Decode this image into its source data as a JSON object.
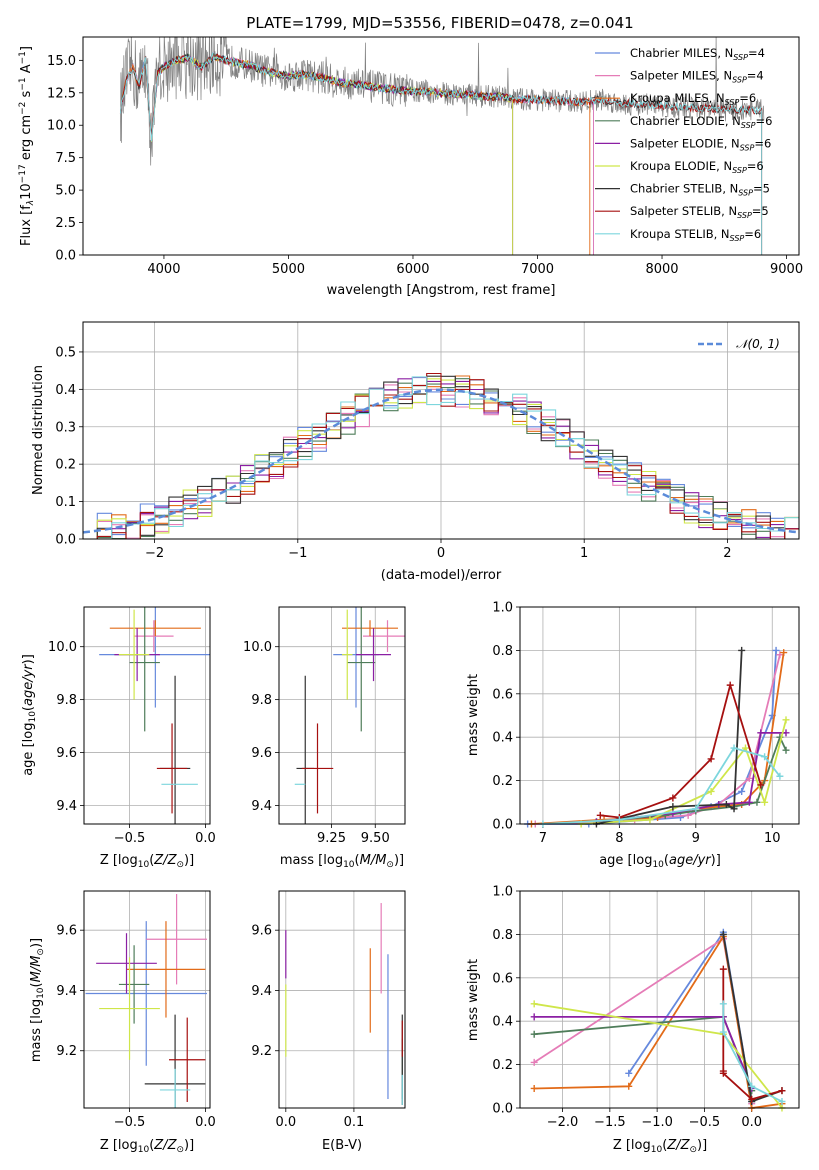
{
  "chart_data": [
    {
      "id": "spectrum",
      "type": "line",
      "title": "PLATE=1799, MJD=53556, FIBERID=0478, z=0.041",
      "xlabel": "wavelength [Angstrom, rest frame]",
      "ylabel_parts": [
        "Flux [f",
        "λ",
        "10",
        "−17",
        " erg cm",
        "−2",
        " s",
        "−1",
        " A",
        "−1",
        "]"
      ],
      "xlim": [
        3350,
        9100
      ],
      "ylim": [
        0,
        16.8
      ],
      "xticks": [
        4000,
        5000,
        6000,
        7000,
        8000,
        9000
      ],
      "yticks": [
        0.0,
        2.5,
        5.0,
        7.5,
        10.0,
        12.5,
        15.0
      ],
      "data_color": "#808080",
      "data": {
        "x": [
          3650,
          3700,
          3750,
          3800,
          3850,
          3900,
          3950,
          4000,
          4100,
          4200,
          4300,
          4400,
          4500,
          4600,
          4700,
          4800,
          4900,
          5000,
          5100,
          5200,
          5300,
          5400,
          5500,
          5600,
          5700,
          5800,
          5900,
          6000,
          6100,
          6200,
          6300,
          6400,
          6500,
          6600,
          6700,
          6800,
          6900,
          7000,
          7100,
          7200,
          7300,
          7400,
          7500,
          7600,
          7700,
          7800,
          7900,
          8000,
          8100,
          8200,
          8300,
          8400,
          8500,
          8600,
          8700,
          8800
        ],
        "y": [
          11.2,
          13.5,
          14.5,
          13.0,
          15.0,
          9.0,
          14.0,
          14.5,
          15.0,
          15.2,
          14.5,
          15.3,
          15.0,
          14.8,
          14.6,
          14.2,
          14.0,
          13.8,
          13.9,
          13.8,
          13.6,
          13.3,
          13.2,
          13.1,
          12.9,
          12.8,
          12.7,
          12.6,
          12.6,
          12.5,
          12.4,
          12.4,
          12.3,
          12.2,
          12.2,
          12.0,
          12.0,
          12.0,
          11.9,
          11.9,
          11.8,
          11.8,
          12.0,
          11.8,
          11.7,
          11.6,
          11.6,
          11.5,
          11.4,
          11.4,
          11.3,
          11.3,
          11.2,
          11.2,
          11.2,
          11.1
        ]
      },
      "models": [
        {
          "name": "Chabrier MILES, N",
          "sub": "SSP",
          "suffix": "=4",
          "color": "#6689dd",
          "range": [
            3650,
            7450
          ]
        },
        {
          "name": "Salpeter MILES, N",
          "sub": "SSP",
          "suffix": "=4",
          "color": "#e57cb7",
          "range": [
            3650,
            7450
          ]
        },
        {
          "name": "Kroupa MILES, N",
          "sub": "SSP",
          "suffix": "=6",
          "color": "#e26b19",
          "range": [
            3650,
            7420
          ]
        },
        {
          "name": "Chabrier ELODIE, N",
          "sub": "SSP",
          "suffix": "=6",
          "color": "#4f7d5a",
          "range": [
            3900,
            6800
          ]
        },
        {
          "name": "Salpeter ELODIE, N",
          "sub": "SSP",
          "suffix": "=6",
          "color": "#8b1fa3",
          "range": [
            3900,
            6800
          ]
        },
        {
          "name": "Kroupa ELODIE, N",
          "sub": "SSP",
          "suffix": "=6",
          "color": "#cfe64a",
          "range": [
            3900,
            6800
          ]
        },
        {
          "name": "Chabrier STELIB, N",
          "sub": "SSP",
          "suffix": "=5",
          "color": "#333333",
          "range": [
            3650,
            8800
          ]
        },
        {
          "name": "Salpeter STELIB, N",
          "sub": "SSP",
          "suffix": "=5",
          "color": "#a61010",
          "range": [
            3650,
            8800
          ]
        },
        {
          "name": "Kroupa STELIB, N",
          "sub": "SSP",
          "suffix": "=6",
          "color": "#7dd6dd",
          "range": [
            3650,
            8800
          ]
        }
      ],
      "legend_position": "upper-right"
    },
    {
      "id": "residuals",
      "type": "line",
      "xlabel": "(data-model)/error",
      "ylabel": "Normed distribution",
      "xlim": [
        -2.5,
        2.5
      ],
      "ylim": [
        0,
        0.58
      ],
      "xticks": [
        -2,
        -1,
        0,
        1,
        2
      ],
      "yticks": [
        0.0,
        0.1,
        0.2,
        0.3,
        0.4,
        0.5
      ],
      "grid": true,
      "bin_width": 0.1,
      "reference": {
        "label": "𝒩(0, 1)",
        "color": "#5b8bd9",
        "style": "dashed"
      },
      "legend_position": "upper-right"
    },
    {
      "id": "age-vs-Z",
      "type": "scatter",
      "xlabel_parts": [
        "Z [log",
        "10",
        "(",
        "Z/Z",
        "⊙",
        ")]"
      ],
      "ylabel_parts": [
        "age  [log",
        "10",
        "(",
        "age/yr",
        ")]"
      ],
      "xlim": [
        -0.8,
        0.03
      ],
      "ylim": [
        9.33,
        10.15
      ],
      "xticks": [
        -0.5,
        0.0
      ],
      "ytick_labels": [
        "9.4",
        "9.6",
        "9.8",
        "10.0"
      ],
      "yticks": [
        9.4,
        9.6,
        9.8,
        10.0
      ],
      "grid": true,
      "points": [
        {
          "color": "#6689dd",
          "x": -0.33,
          "xerr": 0.37,
          "y": 9.97,
          "yerr": 0.2
        },
        {
          "color": "#e57cb7",
          "x": -0.34,
          "xerr": 0.13,
          "y": 10.04,
          "yerr": 0.06
        },
        {
          "color": "#e26b19",
          "x": -0.33,
          "xerr": 0.3,
          "y": 10.07,
          "yerr": 0.03
        },
        {
          "color": "#4f7d5a",
          "x": -0.4,
          "xerr": 0.1,
          "y": 9.94,
          "yerr": 0.26
        },
        {
          "color": "#8b1fa3",
          "x": -0.45,
          "xerr": 0.15,
          "y": 9.97,
          "yerr": 0.1
        },
        {
          "color": "#cfe64a",
          "x": -0.47,
          "xerr": 0.1,
          "y": 9.97,
          "yerr": 0.17
        },
        {
          "color": "#333333",
          "x": -0.2,
          "xerr": 0.1,
          "y": 9.54,
          "yerr": 0.35
        },
        {
          "color": "#a61010",
          "x": -0.22,
          "xerr": 0.1,
          "y": 9.54,
          "yerr": 0.17
        },
        {
          "color": "#7dd6dd",
          "x": -0.17,
          "xerr": 0.12,
          "y": 9.48,
          "yerr": 0.0
        }
      ]
    },
    {
      "id": "age-vs-mass",
      "type": "scatter",
      "xlabel_parts": [
        "mass [log",
        "10",
        "(",
        "M/M",
        "⊙",
        ")]"
      ],
      "xlim": [
        8.95,
        9.67
      ],
      "ylim": [
        9.33,
        10.15
      ],
      "xticks": [
        9.25,
        9.5
      ],
      "xtick_labels": [
        "9.25",
        "9.50"
      ],
      "ytick_labels": [
        "9.4",
        "9.6",
        "9.8",
        "10.0"
      ],
      "yticks": [
        9.4,
        9.6,
        9.8,
        10.0
      ],
      "grid": true,
      "points": [
        {
          "color": "#6689dd",
          "x": 9.39,
          "xerr": 0.13,
          "y": 9.97,
          "yerr": 0.2
        },
        {
          "color": "#e57cb7",
          "x": 9.57,
          "xerr": 0.14,
          "y": 10.04,
          "yerr": 0.06
        },
        {
          "color": "#e26b19",
          "x": 9.47,
          "xerr": 0.16,
          "y": 10.07,
          "yerr": 0.03
        },
        {
          "color": "#4f7d5a",
          "x": 9.42,
          "xerr": 0.08,
          "y": 9.94,
          "yerr": 0.26
        },
        {
          "color": "#8b1fa3",
          "x": 9.49,
          "xerr": 0.1,
          "y": 9.97,
          "yerr": 0.1
        },
        {
          "color": "#cfe64a",
          "x": 9.34,
          "xerr": 0.03,
          "y": 9.97,
          "yerr": 0.17
        },
        {
          "color": "#333333",
          "x": 9.1,
          "xerr": 0.05,
          "y": 9.54,
          "yerr": 0.35
        },
        {
          "color": "#a61010",
          "x": 9.17,
          "xerr": 0.09,
          "y": 9.54,
          "yerr": 0.17
        },
        {
          "color": "#7dd6dd",
          "x": 9.07,
          "xerr": 0.03,
          "y": 9.48,
          "yerr": 0.0
        }
      ]
    },
    {
      "id": "massweight-vs-age",
      "type": "line",
      "xlabel_parts": [
        "age  [log",
        "10",
        "(",
        "age/yr",
        ")]"
      ],
      "ylabel": "mass weight",
      "xlim": [
        6.7,
        10.35
      ],
      "ylim": [
        0,
        1.0
      ],
      "xticks": [
        7,
        8,
        9,
        10
      ],
      "yticks": [
        0.0,
        0.2,
        0.4,
        0.6,
        0.8,
        1.0
      ],
      "grid": true,
      "series": [
        {
          "color": "#6689dd",
          "x": [
            6.8,
            7.6,
            8.0,
            8.8,
            9.2,
            9.6,
            10.0,
            10.05
          ],
          "y": [
            0.0,
            0.0,
            0.01,
            0.03,
            0.08,
            0.15,
            0.5,
            0.8
          ]
        },
        {
          "color": "#e57cb7",
          "x": [
            6.9,
            7.7,
            8.2,
            8.9,
            9.3,
            9.7,
            10.1
          ],
          "y": [
            0.0,
            0.01,
            0.02,
            0.04,
            0.09,
            0.21,
            0.78
          ]
        },
        {
          "color": "#e26b19",
          "x": [
            6.85,
            7.8,
            8.5,
            9.0,
            9.6,
            9.9,
            10.15
          ],
          "y": [
            0.0,
            0.02,
            0.03,
            0.07,
            0.09,
            0.2,
            0.79
          ]
        },
        {
          "color": "#4f7d5a",
          "x": [
            7.7,
            8.6,
            9.0,
            9.5,
            9.8,
            10.1,
            10.18
          ],
          "y": [
            0.01,
            0.04,
            0.06,
            0.08,
            0.1,
            0.4,
            0.34
          ]
        },
        {
          "color": "#8b1fa3",
          "x": [
            7.7,
            8.7,
            9.3,
            9.7,
            9.85,
            10.18
          ],
          "y": [
            0.01,
            0.05,
            0.09,
            0.1,
            0.42,
            0.42
          ]
        },
        {
          "color": "#cfe64a",
          "x": [
            7.5,
            8.4,
            9.2,
            9.65,
            9.9,
            10.18
          ],
          "y": [
            0.0,
            0.02,
            0.15,
            0.35,
            0.1,
            0.48
          ]
        },
        {
          "color": "#333333",
          "x": [
            7.7,
            8.7,
            9.4,
            9.5,
            9.6
          ],
          "y": [
            0.0,
            0.08,
            0.09,
            0.07,
            0.8
          ]
        },
        {
          "color": "#a61010",
          "x": [
            7.75,
            8.0,
            8.7,
            9.2,
            9.45,
            9.85
          ],
          "y": [
            0.04,
            0.03,
            0.12,
            0.3,
            0.64,
            0.18
          ]
        },
        {
          "color": "#7dd6dd",
          "x": [
            7.0,
            8.0,
            9.0,
            9.5,
            9.9,
            10.1
          ],
          "y": [
            0.0,
            0.02,
            0.07,
            0.35,
            0.31,
            0.22
          ]
        }
      ]
    },
    {
      "id": "mass-vs-Z",
      "type": "scatter",
      "xlabel_parts": [
        "Z [log",
        "10",
        "(",
        "Z/Z",
        "⊙",
        ")]"
      ],
      "ylabel_parts": [
        "mass [log",
        "10",
        "(",
        "M/M",
        "⊙",
        ")]"
      ],
      "xlim": [
        -0.8,
        0.03
      ],
      "ylim": [
        9.01,
        9.73
      ],
      "xticks": [
        -0.5,
        0.0
      ],
      "ytick_labels": [
        "9.2",
        "9.4",
        "9.6"
      ],
      "yticks": [
        9.2,
        9.4,
        9.6
      ],
      "grid": true,
      "points": [
        {
          "color": "#6689dd",
          "x": -0.39,
          "xerr": 0.4,
          "y": 9.39,
          "yerr": 0.24
        },
        {
          "color": "#e57cb7",
          "x": -0.19,
          "xerr": 0.2,
          "y": 9.57,
          "yerr": 0.15
        },
        {
          "color": "#e26b19",
          "x": -0.26,
          "xerr": 0.26,
          "y": 9.47,
          "yerr": 0.16
        },
        {
          "color": "#4f7d5a",
          "x": -0.47,
          "xerr": 0.1,
          "y": 9.42,
          "yerr": 0.13
        },
        {
          "color": "#8b1fa3",
          "x": -0.52,
          "xerr": 0.2,
          "y": 9.49,
          "yerr": 0.1
        },
        {
          "color": "#cfe64a",
          "x": -0.5,
          "xerr": 0.2,
          "y": 9.34,
          "yerr": 0.17
        },
        {
          "color": "#333333",
          "x": -0.2,
          "xerr": 0.2,
          "y": 9.09,
          "yerr": 0.23
        },
        {
          "color": "#a61010",
          "x": -0.12,
          "xerr": 0.12,
          "y": 9.17,
          "yerr": 0.14
        },
        {
          "color": "#7dd6dd",
          "x": -0.2,
          "xerr": 0.1,
          "y": 9.07,
          "yerr": 0.07
        }
      ]
    },
    {
      "id": "mass-vs-EBV",
      "type": "scatter",
      "xlabel": "E(B-V)",
      "xlim": [
        -0.01,
        0.175
      ],
      "ylim": [
        9.01,
        9.73
      ],
      "xticks": [
        0.0,
        0.1
      ],
      "xtick_labels": [
        "0.0",
        "0.1"
      ],
      "ytick_labels": [
        "9.2",
        "9.4",
        "9.6"
      ],
      "yticks": [
        9.2,
        9.4,
        9.6
      ],
      "grid": true,
      "points": [
        {
          "color": "#6689dd",
          "x": 0.15,
          "xerr": 0.0,
          "y": 9.28,
          "yerr": 0.24
        },
        {
          "color": "#e57cb7",
          "x": 0.14,
          "xerr": 0.0,
          "y": 9.54,
          "yerr": 0.15
        },
        {
          "color": "#e26b19",
          "x": 0.124,
          "xerr": 0.0,
          "y": 9.4,
          "yerr": 0.14
        },
        {
          "color": "#4f7d5a",
          "x": 0.171,
          "xerr": 0.0,
          "y": 9.14,
          "yerr": 0.1
        },
        {
          "color": "#8b1fa3",
          "x": 0.0,
          "xerr": 0.0,
          "y": 9.52,
          "yerr": 0.08
        },
        {
          "color": "#cfe64a",
          "x": 0.0,
          "xerr": 0.0,
          "y": 9.3,
          "yerr": 0.12
        },
        {
          "color": "#333333",
          "x": 0.171,
          "xerr": 0.0,
          "y": 9.17,
          "yerr": 0.15
        },
        {
          "color": "#a61010",
          "x": 0.171,
          "xerr": 0.0,
          "y": 9.24,
          "yerr": 0.06
        },
        {
          "color": "#7dd6dd",
          "x": 0.171,
          "xerr": 0.0,
          "y": 9.07,
          "yerr": 0.05
        }
      ]
    },
    {
      "id": "massweight-vs-Z",
      "type": "line",
      "xlabel_parts": [
        "Z [log",
        "10",
        "(",
        "Z/Z",
        "⊙",
        ")]"
      ],
      "ylabel": "mass weight",
      "xlim": [
        -2.45,
        0.5
      ],
      "ylim": [
        0,
        1.0
      ],
      "xticks": [
        -2.0,
        -1.5,
        -1.0,
        -0.5,
        0.0
      ],
      "xtick_labels": [
        "−2.0",
        "−1.5",
        "−1.0",
        "−0.5",
        "0.0"
      ],
      "yticks": [
        0.0,
        0.2,
        0.4,
        0.6,
        0.8,
        1.0
      ],
      "grid": true,
      "series": [
        {
          "color": "#6689dd",
          "x": [
            -1.3,
            -0.3,
            0.0
          ],
          "y": [
            0.16,
            0.81,
            0.03
          ]
        },
        {
          "color": "#e57cb7",
          "x": [
            -2.3,
            -0.3,
            0.0
          ],
          "y": [
            0.21,
            0.78,
            0.02
          ]
        },
        {
          "color": "#e26b19",
          "x": [
            -2.3,
            -1.3,
            -0.3,
            0.0,
            0.32
          ],
          "y": [
            0.09,
            0.1,
            0.79,
            0.0,
            0.02
          ]
        },
        {
          "color": "#4f7d5a",
          "x": [
            -2.3,
            -0.3,
            0.0
          ],
          "y": [
            0.34,
            0.42,
            0.08
          ]
        },
        {
          "color": "#8b1fa3",
          "x": [
            -2.3,
            -0.3,
            0.0
          ],
          "y": [
            0.42,
            0.42,
            0.09
          ]
        },
        {
          "color": "#cfe64a",
          "x": [
            -2.3,
            -0.3,
            0.32
          ],
          "y": [
            0.48,
            0.34,
            0.0
          ]
        },
        {
          "color": "#333333",
          "x": [
            -0.3,
            0.0,
            0.32
          ],
          "y": [
            0.8,
            0.03,
            0.08
          ]
        },
        {
          "color": "#a61010",
          "x": [
            -0.3,
            -0.3,
            -0.3,
            0.0,
            0.32
          ],
          "y": [
            0.64,
            0.17,
            0.16,
            0.04,
            0.08
          ]
        },
        {
          "color": "#7dd6dd",
          "x": [
            -0.3,
            -0.3,
            0.0,
            0.32
          ],
          "y": [
            0.48,
            0.35,
            0.1,
            0.03
          ]
        }
      ]
    }
  ]
}
